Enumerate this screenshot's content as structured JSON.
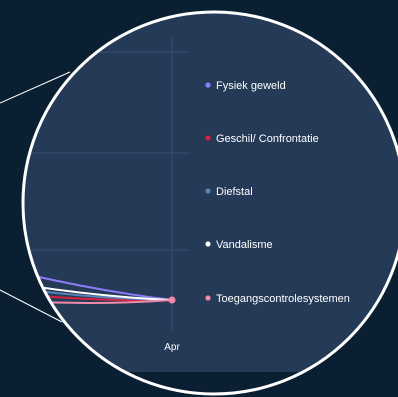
{
  "chart_data": {
    "type": "line",
    "x": [
      "Apr"
    ],
    "series": [
      {
        "name": "Fysiek geweld",
        "color": "#8b7cf6",
        "values": [
          0
        ]
      },
      {
        "name": "Geschil/ Confrontatie",
        "color": "#d8213e",
        "values": [
          0
        ]
      },
      {
        "name": "Diefstal",
        "color": "#5b82b8",
        "values": [
          0
        ]
      },
      {
        "name": "Vandalisme",
        "color": "#ffffff",
        "values": [
          0
        ]
      },
      {
        "name": "Toegangscontrolesystemen",
        "color": "#f28aa8",
        "values": [
          0
        ]
      }
    ],
    "xlabel": "",
    "ylabel": "",
    "grid": true,
    "legend_position": "right"
  },
  "colors": {
    "background": "#0b1f33",
    "chart_panel": "#243a57",
    "magnifier_border": "#ffffff"
  }
}
